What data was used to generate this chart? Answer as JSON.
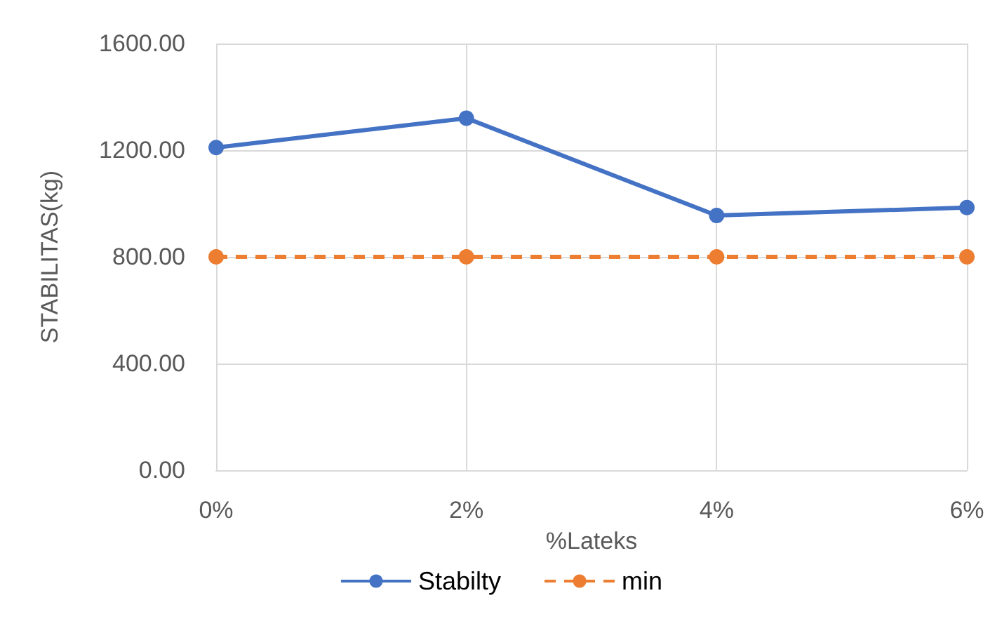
{
  "chart_data": {
    "type": "line",
    "xlabel": "%Lateks",
    "ylabel": "STABILITAS(kg)",
    "categories": [
      "0%",
      "2%",
      "4%",
      "6%"
    ],
    "series": [
      {
        "name": "Stabilty",
        "color": "#4472c4",
        "values": [
          1210,
          1320,
          955,
          985
        ],
        "line_style": "solid"
      },
      {
        "name": "min",
        "color": "#ed7d31",
        "values": [
          800,
          800,
          800,
          800
        ],
        "line_style": "dashed"
      }
    ],
    "ylim": [
      0,
      1600
    ],
    "yticks": [
      {
        "value": 0,
        "label": "0.00"
      },
      {
        "value": 400,
        "label": "400.00"
      },
      {
        "value": 800,
        "label": "800.00"
      },
      {
        "value": 1200,
        "label": "1200.00"
      },
      {
        "value": 1600,
        "label": "1600.00"
      }
    ],
    "grid": true,
    "legend": "bottom",
    "marker": "circle"
  }
}
